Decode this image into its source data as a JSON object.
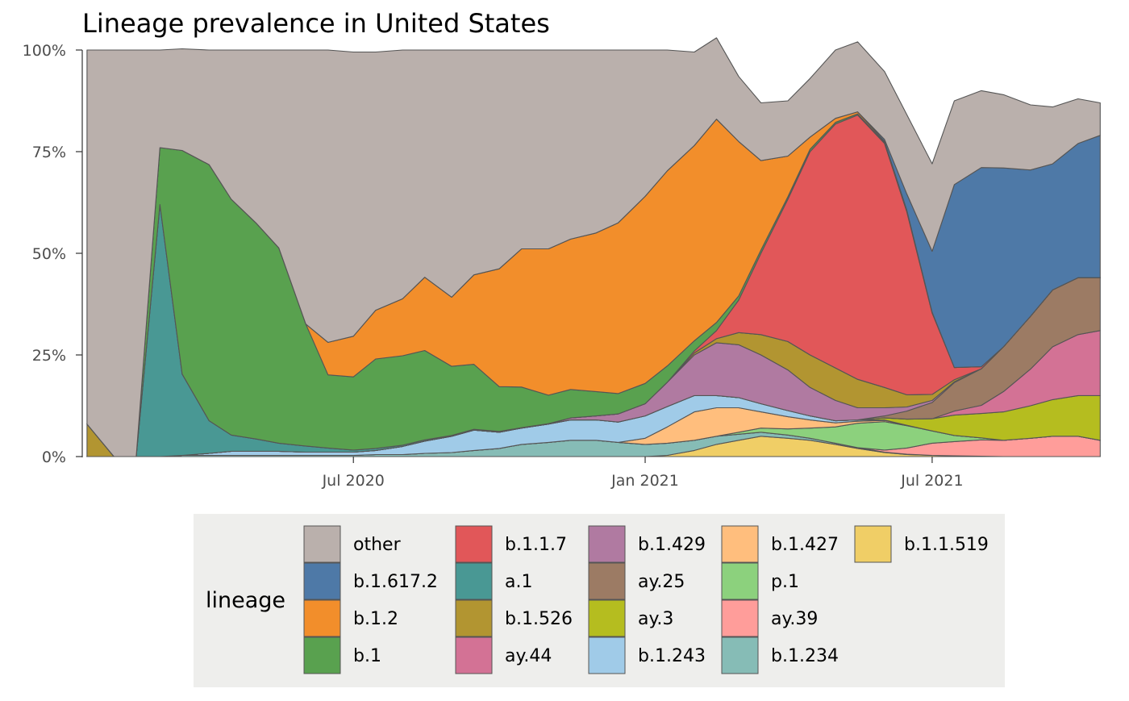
{
  "chart_data": {
    "type": "area",
    "stacked": "percent",
    "title": "Lineage prevalence in United States",
    "xlabel": "",
    "ylabel": "",
    "ylim": [
      0,
      100
    ],
    "y_ticks": [
      "0%",
      "25%",
      "50%",
      "75%",
      "100%"
    ],
    "x_ticks": [
      "Jul 2020",
      "Jan 2021",
      "Jul 2021"
    ],
    "grid": false,
    "legend": {
      "title": "lineage",
      "placement": "bottom"
    },
    "x": [
      "2020-01-15",
      "2020-02-01",
      "2020-02-15",
      "2020-03-01",
      "2020-03-15",
      "2020-04-01",
      "2020-04-15",
      "2020-05-01",
      "2020-05-15",
      "2020-06-01",
      "2020-06-15",
      "2020-07-01",
      "2020-07-15",
      "2020-08-01",
      "2020-08-15",
      "2020-09-01",
      "2020-09-15",
      "2020-10-01",
      "2020-10-15",
      "2020-11-01",
      "2020-11-15",
      "2020-12-01",
      "2020-12-15",
      "2021-01-01",
      "2021-01-15",
      "2021-02-01",
      "2021-02-15",
      "2021-03-01",
      "2021-03-15",
      "2021-04-01",
      "2021-04-15",
      "2021-05-01",
      "2021-05-15",
      "2021-06-01",
      "2021-06-15",
      "2021-07-01",
      "2021-07-15",
      "2021-08-01",
      "2021-08-15",
      "2021-09-01",
      "2021-09-15",
      "2021-10-01",
      "2021-10-15"
    ],
    "series": [
      {
        "name": "b.1.1.519",
        "color": "#F0CE66",
        "values": [
          0,
          0,
          0,
          0,
          0,
          0,
          0,
          0,
          0,
          0,
          0,
          0,
          0,
          0,
          0,
          0,
          0,
          0,
          0,
          0,
          0,
          0,
          0,
          0,
          0.3,
          1.5,
          3,
          4,
          5,
          4.5,
          4,
          3,
          2,
          1,
          0.5,
          0.3,
          0.2,
          0.1,
          0,
          0,
          0,
          0,
          0
        ]
      },
      {
        "name": "b.1.234",
        "color": "#86BCB6",
        "values": [
          0,
          0,
          0,
          0,
          0.3,
          0.3,
          0.3,
          0.3,
          0.3,
          0.3,
          0.3,
          0.3,
          0.5,
          0.5,
          0.8,
          1,
          1.5,
          2,
          3,
          3.5,
          4,
          4,
          3.5,
          3,
          3,
          2.5,
          2,
          1.5,
          1,
          0.8,
          0.5,
          0.3,
          0.2,
          0.1,
          0.1,
          0,
          0,
          0,
          0,
          0,
          0,
          0,
          0
        ]
      },
      {
        "name": "ay.39",
        "color": "#FF9D9A",
        "values": [
          0,
          0,
          0,
          0,
          0,
          0,
          0,
          0,
          0,
          0,
          0,
          0,
          0,
          0,
          0,
          0,
          0,
          0,
          0,
          0,
          0,
          0,
          0,
          0,
          0,
          0,
          0,
          0,
          0,
          0,
          0,
          0,
          0,
          0.5,
          1.5,
          3,
          3.5,
          4,
          4,
          4.5,
          5,
          5,
          4
        ]
      },
      {
        "name": "p.1",
        "color": "#8CD17D",
        "values": [
          0,
          0,
          0,
          0,
          0,
          0,
          0,
          0,
          0,
          0,
          0,
          0,
          0,
          0,
          0,
          0,
          0,
          0,
          0,
          0,
          0,
          0,
          0,
          0,
          0,
          0,
          0,
          0.5,
          1,
          1.5,
          2.5,
          4,
          6,
          7,
          5.5,
          3,
          1.5,
          0.5,
          0,
          0,
          0,
          0,
          0
        ]
      },
      {
        "name": "b.1.427",
        "color": "#FFBE7D",
        "values": [
          0,
          0,
          0,
          0,
          0,
          0,
          0,
          0,
          0,
          0,
          0,
          0,
          0,
          0,
          0,
          0,
          0,
          0,
          0,
          0,
          0,
          0,
          0,
          1.5,
          4,
          7,
          7,
          6,
          4,
          3,
          2,
          1,
          0.5,
          0.3,
          0.1,
          0,
          0,
          0,
          0,
          0,
          0,
          0,
          0
        ]
      },
      {
        "name": "b.1.243",
        "color": "#A0CBE8",
        "values": [
          0,
          0,
          0,
          0,
          0,
          0.5,
          1,
          1,
          1,
          0.8,
          0.8,
          0.8,
          1,
          2,
          3,
          4,
          5,
          4,
          4,
          4.5,
          5,
          5,
          5,
          5.5,
          5,
          4,
          3,
          2.5,
          2,
          1.5,
          1,
          0.5,
          0.3,
          0.1,
          0,
          0,
          0,
          0,
          0,
          0,
          0,
          0,
          0
        ]
      },
      {
        "name": "ay.3",
        "color": "#B5BD1F",
        "values": [
          0,
          0,
          0,
          0,
          0,
          0,
          0,
          0,
          0,
          0,
          0,
          0,
          0,
          0,
          0,
          0,
          0,
          0,
          0,
          0,
          0,
          0,
          0,
          0,
          0,
          0,
          0,
          0,
          0,
          0,
          0,
          0,
          0,
          0.5,
          1.5,
          3,
          5,
          6,
          7,
          8,
          9,
          10,
          11
        ]
      },
      {
        "name": "ay.44",
        "color": "#D37295",
        "values": [
          0,
          0,
          0,
          0,
          0,
          0,
          0,
          0,
          0,
          0,
          0,
          0,
          0,
          0,
          0,
          0,
          0,
          0,
          0,
          0,
          0,
          0,
          0,
          0,
          0,
          0,
          0,
          0,
          0,
          0,
          0,
          0,
          0,
          0,
          0,
          0,
          1,
          2,
          5,
          9,
          13,
          15,
          16
        ]
      },
      {
        "name": "ay.25",
        "color": "#9C7B64",
        "values": [
          0,
          0,
          0,
          0,
          0,
          0,
          0,
          0,
          0,
          0,
          0,
          0,
          0,
          0,
          0,
          0,
          0,
          0,
          0,
          0,
          0,
          0,
          0,
          0,
          0,
          0,
          0,
          0,
          0,
          0,
          0,
          0,
          0,
          0.5,
          2,
          4,
          7,
          9,
          11,
          13,
          14,
          14,
          13
        ]
      },
      {
        "name": "b.1.429",
        "color": "#B07AA1",
        "values": [
          0,
          0,
          0,
          0,
          0,
          0,
          0,
          0,
          0,
          0,
          0,
          0,
          0,
          0,
          0,
          0,
          0,
          0,
          0,
          0,
          0.5,
          1,
          2,
          3,
          6,
          10,
          13,
          13,
          12,
          10,
          7,
          5,
          3,
          2,
          1,
          0.5,
          0.2,
          0,
          0,
          0,
          0,
          0,
          0
        ]
      },
      {
        "name": "b.1.526",
        "color": "#B29531",
        "values": [
          8,
          0,
          0,
          0,
          0,
          0,
          0,
          0,
          0,
          0,
          0,
          0,
          0,
          0,
          0,
          0,
          0,
          0,
          0,
          0,
          0,
          0,
          0,
          0,
          0,
          0.5,
          1,
          3,
          5,
          7,
          8,
          8,
          7,
          5,
          3,
          1.5,
          0.5,
          0,
          0,
          0,
          0,
          0,
          0
        ]
      },
      {
        "name": "a.1",
        "color": "#499894",
        "values": [
          0,
          0,
          0,
          62,
          20,
          8,
          4,
          3,
          2,
          1.5,
          1,
          0.5,
          0.5,
          0.3,
          0.3,
          0.2,
          0.2,
          0.2,
          0.1,
          0.1,
          0,
          0,
          0,
          0,
          0,
          0,
          0,
          0,
          0,
          0,
          0,
          0,
          0,
          0,
          0,
          0,
          0,
          0,
          0,
          0,
          0,
          0,
          0
        ]
      },
      {
        "name": "b.1.1.7",
        "color": "#E15759",
        "values": [
          0,
          0,
          0,
          0,
          0,
          0,
          0,
          0,
          0,
          0,
          0,
          0,
          0,
          0,
          0,
          0,
          0,
          0,
          0,
          0,
          0,
          0,
          0,
          0,
          0,
          0.5,
          2,
          8,
          20,
          35,
          50,
          60,
          65,
          60,
          45,
          20,
          3,
          0.5,
          0,
          0,
          0,
          0,
          0
        ]
      },
      {
        "name": "b.1",
        "color": "#59A14F",
        "values": [
          0,
          0,
          0,
          14,
          55,
          63,
          58,
          53,
          48,
          30,
          18,
          18,
          22,
          22,
          22,
          17,
          16,
          11,
          10,
          7,
          7,
          6,
          5,
          5,
          4,
          2.5,
          2,
          1,
          0.8,
          0.6,
          0.6,
          0.4,
          0.3,
          0.2,
          0.2,
          0.1,
          0,
          0,
          0,
          0,
          0,
          0,
          0
        ]
      },
      {
        "name": "b.1.2",
        "color": "#F28E2B",
        "values": [
          0,
          0,
          0,
          0,
          0,
          0,
          0,
          0,
          0,
          0,
          8,
          10,
          12,
          14,
          18,
          17,
          22,
          29,
          34,
          36,
          37,
          39,
          42,
          46,
          48,
          48,
          50,
          38,
          22,
          10,
          3,
          1,
          0.5,
          0.3,
          0.2,
          0.1,
          0,
          0,
          0,
          0,
          0,
          0,
          0
        ]
      },
      {
        "name": "b.1.617.2",
        "color": "#4E79A7",
        "values": [
          0,
          0,
          0,
          0,
          0,
          0,
          0,
          0,
          0,
          0,
          0,
          0,
          0,
          0,
          0,
          0,
          0,
          0,
          0,
          0,
          0,
          0,
          0,
          0,
          0,
          0,
          0,
          0,
          0,
          0,
          0,
          0,
          0,
          0.5,
          4,
          15,
          45,
          49,
          44,
          36,
          31,
          33,
          35
        ]
      },
      {
        "name": "other",
        "color": "#BAB0AC",
        "values": [
          92,
          100,
          100,
          24,
          25,
          28.2,
          36.7,
          42.7,
          48.7,
          67.4,
          71.9,
          69.9,
          63.5,
          61.2,
          55.9,
          60.8,
          55.3,
          53.8,
          48.9,
          48.9,
          46.5,
          45,
          42.5,
          36,
          29.7,
          23,
          20,
          16,
          14.2,
          13.6,
          14.4,
          16.8,
          17.2,
          16.7,
          19.5,
          21.5,
          20.6,
          18.9,
          18,
          16,
          14,
          11,
          8
        ]
      }
    ]
  }
}
